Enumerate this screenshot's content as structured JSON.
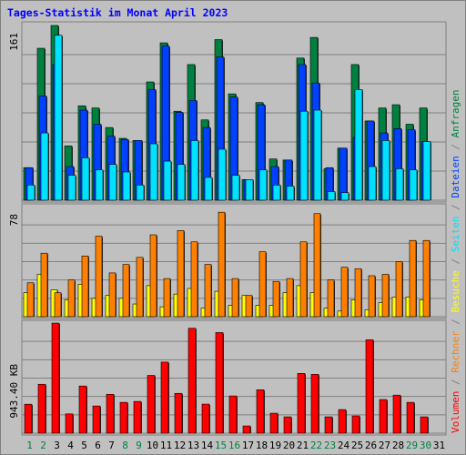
{
  "title": "Tages-Statistik im Monat April 2023",
  "colors": {
    "background": "#c0c0c0",
    "grid": "#808080",
    "anfragen": "#008040",
    "dateien": "#0040ff",
    "seiten": "#00e0ff",
    "besuche": "#ffff00",
    "rechner": "#ff8000",
    "volumen": "#ff0000",
    "day_weekday": "#000000",
    "day_weekend": "#008040"
  },
  "chart_data": [
    {
      "type": "bar",
      "panel": "top",
      "y_label": "161",
      "ylim": [
        0,
        161
      ],
      "grid": true,
      "categories": [
        "1",
        "2",
        "3",
        "4",
        "5",
        "6",
        "7",
        "8",
        "9",
        "10",
        "11",
        "12",
        "13",
        "14",
        "15",
        "16",
        "17",
        "18",
        "19",
        "20",
        "21",
        "22",
        "23",
        "24",
        "25",
        "26",
        "27",
        "28",
        "29",
        "30",
        "31"
      ],
      "series": [
        {
          "name": "Anfragen",
          "values": [
            30,
            140,
            161,
            50,
            87,
            85,
            67,
            57,
            55,
            109,
            145,
            82,
            125,
            74,
            148,
            98,
            19,
            90,
            38,
            37,
            131,
            150,
            29,
            48,
            125,
            73,
            85,
            88,
            70,
            85,
            0
          ]
        },
        {
          "name": "Dateien",
          "values": [
            30,
            96,
            125,
            31,
            83,
            70,
            59,
            56,
            55,
            102,
            142,
            81,
            92,
            67,
            132,
            95,
            19,
            88,
            31,
            37,
            125,
            108,
            30,
            48,
            58,
            73,
            62,
            66,
            65,
            54,
            0
          ]
        },
        {
          "name": "Seiten",
          "values": [
            14,
            62,
            152,
            23,
            39,
            28,
            33,
            26,
            14,
            52,
            36,
            33,
            55,
            21,
            47,
            23,
            19,
            28,
            14,
            13,
            82,
            83,
            8,
            7,
            102,
            31,
            55,
            29,
            28,
            54,
            0
          ]
        }
      ]
    },
    {
      "type": "bar",
      "panel": "middle",
      "y_label": "78",
      "ylim": [
        0,
        78
      ],
      "grid": true,
      "categories": [
        "1",
        "2",
        "3",
        "4",
        "5",
        "6",
        "7",
        "8",
        "9",
        "10",
        "11",
        "12",
        "13",
        "14",
        "15",
        "16",
        "17",
        "18",
        "19",
        "20",
        "21",
        "22",
        "23",
        "24",
        "25",
        "26",
        "27",
        "28",
        "29",
        "30",
        "31"
      ],
      "series": [
        {
          "name": "Besuche",
          "values": [
            17,
            30,
            19,
            12,
            23,
            13,
            15,
            13,
            9,
            22,
            7,
            16,
            20,
            6,
            18,
            8,
            15,
            8,
            8,
            17,
            22,
            17,
            6,
            4,
            12,
            5,
            10,
            14,
            14,
            12,
            0
          ]
        },
        {
          "name": "Rechner",
          "values": [
            24,
            45,
            17,
            26,
            43,
            57,
            31,
            37,
            42,
            58,
            27,
            61,
            53,
            37,
            74,
            27,
            15,
            46,
            25,
            27,
            53,
            73,
            26,
            35,
            34,
            29,
            30,
            39,
            54,
            54,
            0
          ]
        }
      ]
    },
    {
      "type": "bar",
      "panel": "bottom",
      "y_label": "943.40 KB",
      "ylim": [
        0,
        943.4
      ],
      "grid": true,
      "categories": [
        "1",
        "2",
        "3",
        "4",
        "5",
        "6",
        "7",
        "8",
        "9",
        "10",
        "11",
        "12",
        "13",
        "14",
        "15",
        "16",
        "17",
        "18",
        "19",
        "20",
        "21",
        "22",
        "23",
        "24",
        "25",
        "26",
        "27",
        "28",
        "29",
        "30",
        "31"
      ],
      "series": [
        {
          "name": "Volumen",
          "values": [
            248,
            419,
            943,
            165,
            404,
            233,
            333,
            264,
            272,
            495,
            609,
            341,
            899,
            249,
            862,
            319,
            62,
            372,
            171,
            140,
            512,
            504,
            140,
            202,
            148,
            800,
            288,
            326,
            264,
            140,
            0
          ]
        }
      ]
    }
  ],
  "days": [
    {
      "label": "1",
      "weekend": true
    },
    {
      "label": "2",
      "weekend": true
    },
    {
      "label": "3",
      "weekend": false
    },
    {
      "label": "4",
      "weekend": false
    },
    {
      "label": "5",
      "weekend": false
    },
    {
      "label": "6",
      "weekend": false
    },
    {
      "label": "7",
      "weekend": false
    },
    {
      "label": "8",
      "weekend": true
    },
    {
      "label": "9",
      "weekend": true
    },
    {
      "label": "10",
      "weekend": false
    },
    {
      "label": "11",
      "weekend": false
    },
    {
      "label": "12",
      "weekend": false
    },
    {
      "label": "13",
      "weekend": false
    },
    {
      "label": "14",
      "weekend": false
    },
    {
      "label": "15",
      "weekend": true
    },
    {
      "label": "16",
      "weekend": true
    },
    {
      "label": "17",
      "weekend": false
    },
    {
      "label": "18",
      "weekend": false
    },
    {
      "label": "19",
      "weekend": false
    },
    {
      "label": "20",
      "weekend": false
    },
    {
      "label": "21",
      "weekend": false
    },
    {
      "label": "22",
      "weekend": true
    },
    {
      "label": "23",
      "weekend": true
    },
    {
      "label": "24",
      "weekend": false
    },
    {
      "label": "25",
      "weekend": false
    },
    {
      "label": "26",
      "weekend": false
    },
    {
      "label": "27",
      "weekend": false
    },
    {
      "label": "28",
      "weekend": false
    },
    {
      "label": "29",
      "weekend": true
    },
    {
      "label": "30",
      "weekend": true
    },
    {
      "label": "31",
      "weekend": false
    }
  ],
  "right_legend": [
    {
      "text": "Volumen",
      "color": "#ff0000"
    },
    {
      "text": " / ",
      "color": "#808080"
    },
    {
      "text": "Rechner",
      "color": "#ff8000"
    },
    {
      "text": " / ",
      "color": "#808080"
    },
    {
      "text": "Besuche",
      "color": "#ffff00"
    },
    {
      "text": " / ",
      "color": "#808080"
    },
    {
      "text": "Seiten",
      "color": "#00e0ff"
    },
    {
      "text": " / ",
      "color": "#808080"
    },
    {
      "text": "Dateien",
      "color": "#0040ff"
    },
    {
      "text": " / ",
      "color": "#808080"
    },
    {
      "text": "Anfragen",
      "color": "#008040"
    }
  ]
}
